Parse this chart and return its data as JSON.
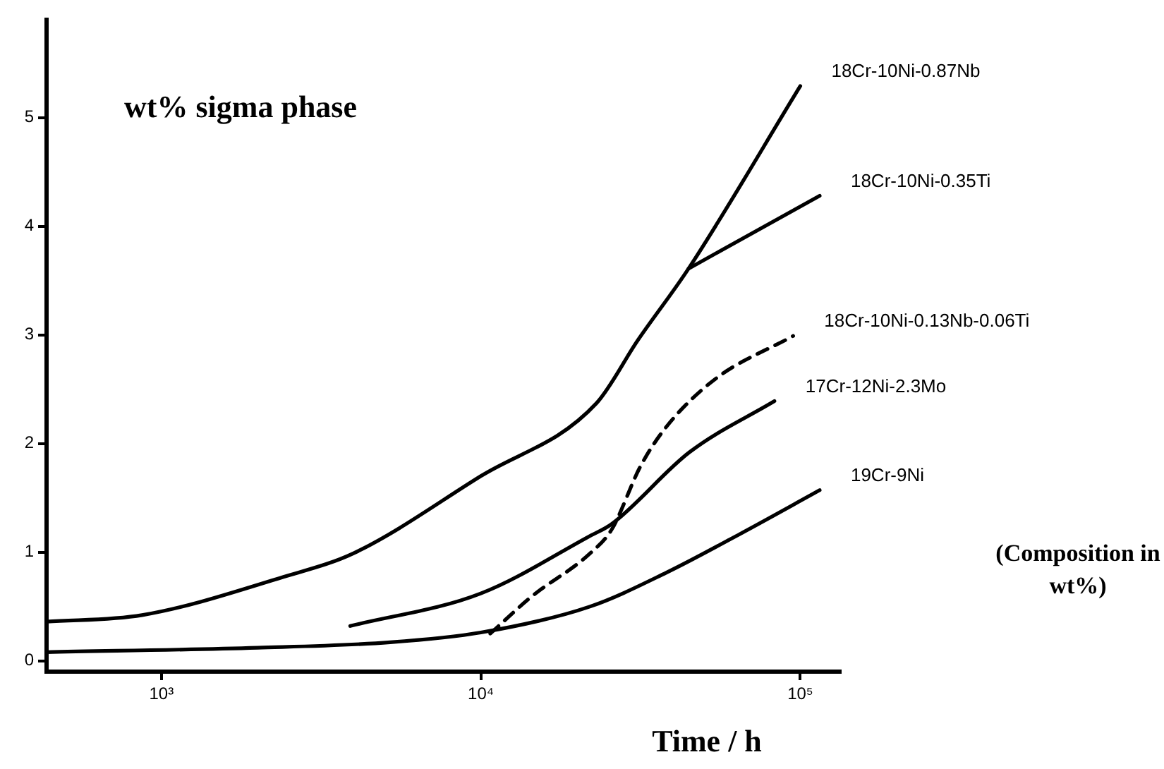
{
  "chart_data": {
    "type": "line",
    "ylabel": "wt% sigma phase",
    "xlabel": "Time / h",
    "log": "x",
    "xlim": [
      437,
      134000
    ],
    "ylim": [
      -0.1,
      5.9
    ],
    "xticks": [
      {
        "value": 1000,
        "label": "10³"
      },
      {
        "value": 10000,
        "label": "10⁴"
      },
      {
        "value": 100000,
        "label": "10⁵"
      }
    ],
    "yticks": [
      0,
      1,
      2,
      3,
      4,
      5
    ],
    "grid": false,
    "legend": false,
    "marker": "none",
    "annotations": [
      "(Composition in wt%)"
    ],
    "series": [
      {
        "name": "18Cr-10Ni-0.87Nb",
        "color": "#000000",
        "x": [
          437,
          870,
          2400,
          4000,
          10000,
          23000,
          31000,
          44700,
          100000
        ],
        "values": [
          0.36,
          0.42,
          0.77,
          0.99,
          1.7,
          2.37,
          2.95,
          3.61,
          5.29
        ]
      },
      {
        "name": "18Cr-10Ni-0.35Ti",
        "color": "#000000",
        "x": [
          44700,
          115000
        ],
        "values": [
          3.61,
          4.28
        ]
      },
      {
        "name": "18Cr-10Ni-0.13Nb-0.06Ti",
        "color": "#000000",
        "line_style": "dashed",
        "x": [
          10700,
          14400,
          22000,
          25700,
          31600,
          38000,
          54000,
          95000
        ],
        "values": [
          0.25,
          0.59,
          0.99,
          1.21,
          1.79,
          2.15,
          2.59,
          2.99
        ]
      },
      {
        "name": "17Cr-12Ni-2.3Mo",
        "color": "#000000",
        "x": [
          3900,
          10000,
          22000,
          25700,
          45000,
          83000
        ],
        "values": [
          0.32,
          0.62,
          1.15,
          1.26,
          1.92,
          2.39
        ]
      },
      {
        "name": "19Cr-9Ni",
        "color": "#000000",
        "x": [
          437,
          2000,
          5200,
          10000,
          22000,
          38000,
          65000,
          115000
        ],
        "values": [
          0.08,
          0.12,
          0.17,
          0.26,
          0.5,
          0.81,
          1.17,
          1.57
        ]
      }
    ]
  }
}
